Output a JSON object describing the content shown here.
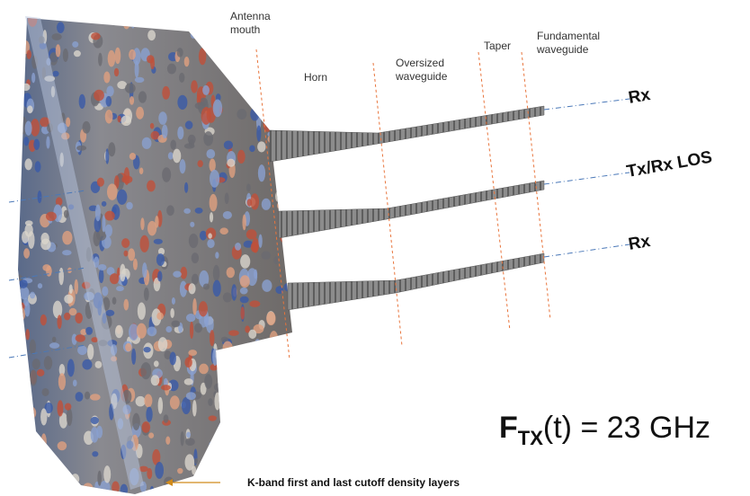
{
  "section_labels": [
    {
      "lines": [
        "Antenna",
        "mouth"
      ]
    },
    {
      "lines": [
        "Horn"
      ]
    },
    {
      "lines": [
        "Oversized",
        "waveguide"
      ]
    },
    {
      "lines": [
        "Taper"
      ]
    },
    {
      "lines": [
        "Fundamental",
        "waveguide"
      ]
    }
  ],
  "beam_labels": [
    "Rx",
    "Tx/Rx LOS",
    "Rx"
  ],
  "frequency": {
    "symbol": "F",
    "subscript": "TX",
    "rest": "(t) = 23 GHz"
  },
  "caption": "K-band first and last cutoff density layers"
}
